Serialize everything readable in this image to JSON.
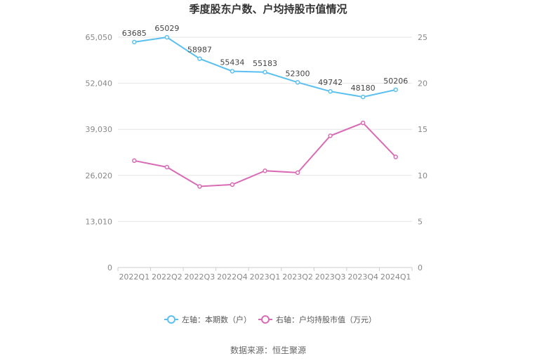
{
  "chart_data": {
    "type": "line",
    "title": "季度股东户数、户均持股市值情况",
    "categories": [
      "2022Q1",
      "2022Q2",
      "2022Q3",
      "2022Q4",
      "2023Q1",
      "2023Q2",
      "2023Q3",
      "2023Q4",
      "2024Q1"
    ],
    "left_axis": {
      "ticks": [
        "0",
        "13,010",
        "26,020",
        "39,030",
        "52,040",
        "65,050"
      ],
      "ylim": [
        0,
        65050
      ]
    },
    "right_axis": {
      "ticks": [
        "0",
        "5",
        "10",
        "15",
        "20",
        "25"
      ],
      "ylim": [
        0,
        25
      ]
    },
    "series": [
      {
        "name": "左轴：本期数（户）",
        "axis": "left",
        "color": "#5bc0f0",
        "values": [
          63685,
          65029,
          58987,
          55434,
          55183,
          52300,
          49742,
          48180,
          50206
        ],
        "labels": [
          "63685",
          "65029",
          "58987",
          "55434",
          "55183",
          "52300",
          "49742",
          "48180",
          "50206"
        ]
      },
      {
        "name": "右轴：户均持股市值（万元）",
        "axis": "right",
        "color": "#d96bb5",
        "values": [
          11.6,
          10.9,
          8.8,
          9.0,
          10.5,
          10.3,
          14.3,
          15.7,
          12.0
        ]
      }
    ],
    "grid": true,
    "legend_position": "bottom-center"
  },
  "source": "数据来源：恒生聚源"
}
